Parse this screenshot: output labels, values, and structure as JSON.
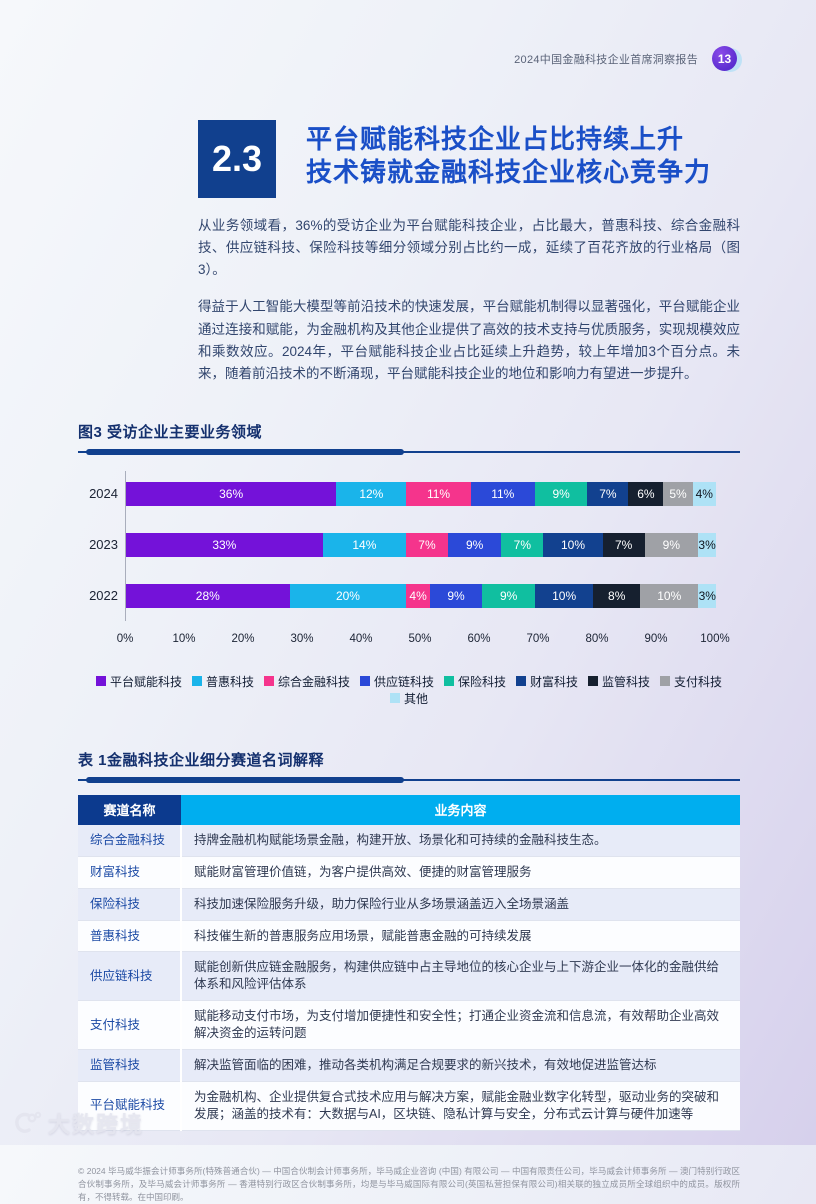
{
  "header": {
    "report_title": "2024中国金融科技企业首席洞察报告",
    "page_number": "13"
  },
  "section": {
    "number": "2.3",
    "title_line1": "平台赋能科技企业占比持续上升",
    "title_line2": "技术铸就金融科技企业核心竞争力"
  },
  "paragraphs": [
    "从业务领域看，36%的受访企业为平台赋能科技企业，占比最大，普惠科技、综合金融科技、供应链科技、保险科技等细分领域分别占比约一成，延续了百花齐放的行业格局（图3）。",
    "得益于人工智能大模型等前沿技术的快速发展，平台赋能机制得以显著强化，平台赋能企业通过连接和赋能，为金融机构及其他企业提供了高效的技术支持与优质服务，实现规模效应和乘数效应。2024年，平台赋能科技企业占比延续上升趋势，较上年增加3个百分点。未来，随着前沿技术的不断涌现，平台赋能科技企业的地位和影响力有望进一步提升。"
  ],
  "chart_data": {
    "type": "bar",
    "stacked": true,
    "orientation": "horizontal",
    "title": "图3 受访企业主要业务领域",
    "categories": [
      "2024",
      "2023",
      "2022"
    ],
    "series": [
      {
        "name": "平台赋能科技",
        "color": "#7412d9",
        "values": [
          36,
          33,
          28
        ]
      },
      {
        "name": "普惠科技",
        "color": "#1ab4ea",
        "values": [
          12,
          14,
          20
        ]
      },
      {
        "name": "综合金融科技",
        "color": "#f5348c",
        "values": [
          11,
          7,
          4
        ]
      },
      {
        "name": "供应链科技",
        "color": "#2b49d8",
        "values": [
          11,
          9,
          9
        ]
      },
      {
        "name": "保险科技",
        "color": "#10bfa0",
        "values": [
          9,
          7,
          9
        ]
      },
      {
        "name": "财富科技",
        "color": "#12418f",
        "values": [
          7,
          10,
          10
        ]
      },
      {
        "name": "监管科技",
        "color": "#16202f",
        "values": [
          6,
          7,
          8
        ]
      },
      {
        "name": "支付科技",
        "color": "#9fa1a6",
        "values": [
          5,
          9,
          10
        ]
      },
      {
        "name": "其他",
        "color": "#aee2f6",
        "values": [
          4,
          3,
          3
        ]
      }
    ],
    "x_ticks": [
      "0%",
      "10%",
      "20%",
      "30%",
      "40%",
      "50%",
      "60%",
      "70%",
      "80%",
      "90%",
      "100%"
    ],
    "xlim": [
      0,
      100
    ],
    "value_label_format": "{v}%",
    "legend_position": "bottom",
    "grid": false
  },
  "table": {
    "title": "表 1金融科技企业细分赛道名词解释",
    "headers": [
      "赛道名称",
      "业务内容"
    ],
    "rows": [
      {
        "name": "综合金融科技",
        "desc": "持牌金融机构赋能场景金融，构建开放、场景化和可持续的金融科技生态。"
      },
      {
        "name": "财富科技",
        "desc": "赋能财富管理价值链，为客户提供高效、便捷的财富管理服务"
      },
      {
        "name": "保险科技",
        "desc": "科技加速保险服务升级，助力保险行业从多场景涵盖迈入全场景涵盖"
      },
      {
        "name": "普惠科技",
        "desc": "科技催生新的普惠服务应用场景，赋能普惠金融的可持续发展"
      },
      {
        "name": "供应链科技",
        "desc": "赋能创新供应链金融服务，构建供应链中占主导地位的核心企业与上下游企业一体化的金融供给体系和风险评估体系"
      },
      {
        "name": "支付科技",
        "desc": "赋能移动支付市场，为支付增加便捷性和安全性；打通企业资金流和信息流，有效帮助企业高效解决资金的运转问题"
      },
      {
        "name": "监管科技",
        "desc": "解决监管面临的困难，推动各类机构满足合规要求的新兴技术，有效地促进监管达标"
      },
      {
        "name": "平台赋能科技",
        "desc": "为金融机构、企业提供复合式技术应用与解决方案，赋能金融业数字化转型，驱动业务的突破和发展；涵盖的技术有：大数据与AI，区块链、隐私计算与安全，分布式云计算与硬件加速等"
      }
    ]
  },
  "footer": {
    "copyright": "© 2024 毕马威华振会计师事务所(特殊普通合伙) — 中国合伙制会计师事务所，毕马威企业咨询 (中国) 有限公司 — 中国有限责任公司，毕马威会计师事务所 — 澳门特别行政区合伙制事务所，及毕马威会计师事务所 — 香港特别行政区合伙制事务所，均是与毕马威国际有限公司(英国私营担保有限公司)相关联的独立成员所全球组织中的成员。版权所有，不得转载。在中国印刷。"
  },
  "watermark": {
    "text": "大数跨境"
  },
  "colors": {
    "navy": "#11408e",
    "title_blue": "#1a4fc7",
    "badge_purple": "#5b2ed0",
    "badge_purple_light": "#8a4ae8",
    "header_left_bg": "#0c3a8e",
    "header_right_bg": "#00aeef",
    "row_tint": "#e7ebf8"
  }
}
